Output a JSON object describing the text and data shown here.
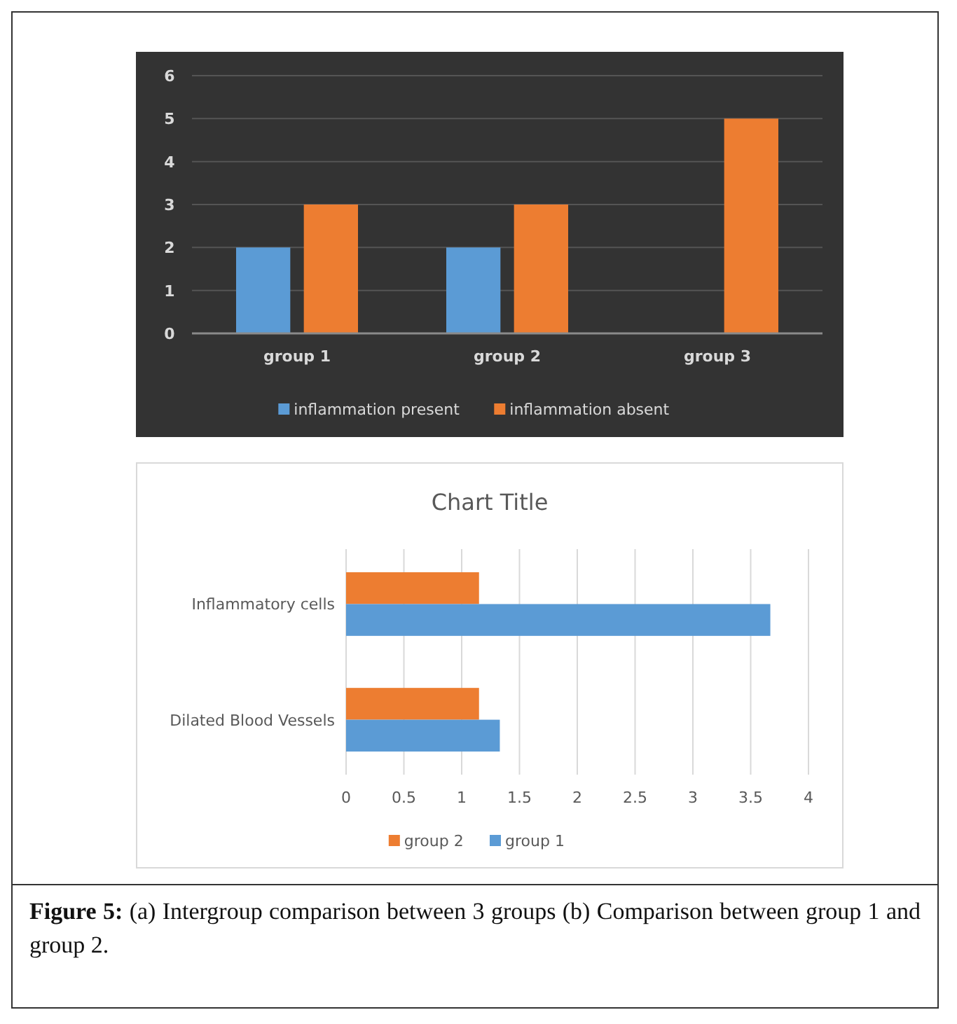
{
  "chart_data": [
    {
      "type": "bar",
      "categories": [
        "group 1",
        "group 2",
        "group 3"
      ],
      "series": [
        {
          "name": "inflammation present",
          "color": "#5b9bd5",
          "values": [
            2,
            2,
            0
          ]
        },
        {
          "name": "inflammation absent",
          "color": "#ed7d31",
          "values": [
            3,
            3,
            5
          ]
        }
      ],
      "ylim": [
        0,
        6
      ],
      "yticks": [
        0,
        1,
        2,
        3,
        4,
        5,
        6
      ],
      "grid": "y",
      "legend": "bottom"
    },
    {
      "type": "bar",
      "orientation": "horizontal",
      "title": "Chart Title",
      "categories": [
        "Inflammatory cells",
        "Dilated Blood Vessels"
      ],
      "series": [
        {
          "name": "group 2",
          "color": "#ed7d31",
          "values": [
            1.15,
            1.15
          ]
        },
        {
          "name": "group 1",
          "color": "#5b9bd5",
          "values": [
            3.67,
            1.33
          ]
        }
      ],
      "xlim": [
        0,
        4
      ],
      "xticks": [
        0,
        0.5,
        1,
        1.5,
        2,
        2.5,
        3,
        3.5,
        4
      ],
      "grid": "x",
      "legend": "bottom",
      "annotations": [
        "Figure 5:",
        "(a) Intergroup comparison between 3 groups (b) Comparison between group 1 and group 2."
      ]
    }
  ]
}
